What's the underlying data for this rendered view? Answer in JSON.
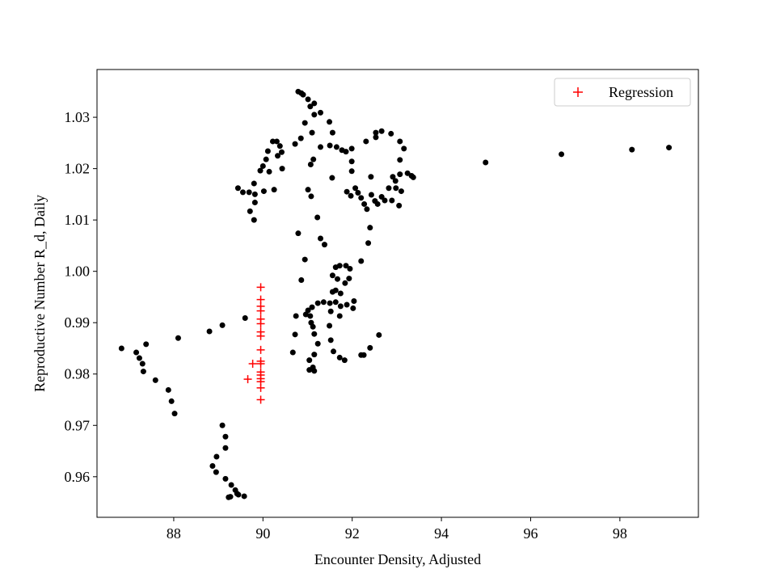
{
  "chart_data": {
    "type": "scatter",
    "x_label": "Encounter Density, Adjusted",
    "y_label": "Reproductive Number R_d, Daily",
    "xlim": [
      86.28,
      99.76
    ],
    "ylim": [
      0.9521,
      1.0393
    ],
    "xticks": [
      88,
      90,
      92,
      94,
      96,
      98
    ],
    "yticks": [
      0.96,
      0.97,
      0.98,
      0.99,
      {
        "value": 1,
        "label": "1.00"
      },
      1.01,
      1.02,
      1.03
    ],
    "legend": "upper right",
    "series": [
      {
        "color": "#000000",
        "marker": "dot",
        "x": [
          86.83,
          87.16,
          87.23,
          87.3,
          87.32,
          87.38,
          87.59,
          87.88,
          87.95,
          88.02,
          88.1,
          88.8,
          89.09,
          89.6,
          89.09,
          89.16,
          89.16,
          88.96,
          88.87,
          88.95,
          89.16,
          89.29,
          89.38,
          89.45,
          89.58,
          89.27,
          89.42,
          89.23,
          89.44,
          89.55,
          89.69,
          89.8,
          89.82,
          89.71,
          89.8,
          89.82,
          90.02,
          89.94,
          90.0,
          90.07,
          90.11,
          90.14,
          90.22,
          90.31,
          90.38,
          90.42,
          90.33,
          90.25,
          90.43,
          90.72,
          90.85,
          90.94,
          91.1,
          91.15,
          91.15,
          91.01,
          90.9,
          90.79,
          90.86,
          91.06,
          91.29,
          91.13,
          91.07,
          91.29,
          91.49,
          91.56,
          91.5,
          91.65,
          91.77,
          91.86,
          91.99,
          91.99,
          91.55,
          91.99,
          91.01,
          91.08,
          91.22,
          90.79,
          91.29,
          91.38,
          90.94,
          90.86,
          91.88,
          91.97,
          92.07,
          92.13,
          92.2,
          92.27,
          92.33,
          92.42,
          92.43,
          92.51,
          92.57,
          92.66,
          92.73,
          92.82,
          92.89,
          92.98,
          93.05,
          93.1,
          92.97,
          92.91,
          93.07,
          93.24,
          93.33,
          93.37,
          93.07,
          93.16,
          93.07,
          92.87,
          92.66,
          92.53,
          92.53,
          92.31,
          92.4,
          92.36,
          92.2,
          92.6,
          92.4,
          92.26,
          92.04,
          92.02,
          91.63,
          91.72,
          91.86,
          91.95,
          91.93,
          91.84,
          91.67,
          91.56,
          91.63,
          91.74,
          91.74,
          91.72,
          91.88,
          91.63,
          91.5,
          91.36,
          91.23,
          91.1,
          91.01,
          90.96,
          91.06,
          91.08,
          91.12,
          91.15,
          91.23,
          91.15,
          91.04,
          91.04,
          91.15,
          91.12,
          90.72,
          90.67,
          90.74,
          91.52,
          91.49,
          91.52,
          91.58,
          91.72,
          91.83,
          92.2,
          91.56,
          94.99,
          96.69,
          98.27,
          99.1
        ],
        "values": [
          0.985,
          0.9842,
          0.9831,
          0.982,
          0.9805,
          0.9858,
          0.9788,
          0.9769,
          0.9747,
          0.9723,
          0.987,
          0.9883,
          0.9895,
          0.9909,
          0.97,
          0.9678,
          0.9656,
          0.9639,
          0.9621,
          0.9609,
          0.9596,
          0.9584,
          0.9574,
          0.9565,
          0.9562,
          0.9561,
          0.9567,
          0.956,
          1.0162,
          1.0154,
          1.0154,
          1.0171,
          1.015,
          1.0117,
          1.01,
          1.0134,
          1.0156,
          1.0196,
          1.0205,
          1.0218,
          1.0234,
          1.0194,
          1.0253,
          1.0253,
          1.0244,
          1.0232,
          1.0225,
          1.0159,
          1.02,
          1.0248,
          1.0259,
          1.0289,
          1.027,
          1.0305,
          1.0327,
          1.0335,
          1.0344,
          1.035,
          1.0347,
          1.0321,
          1.0309,
          1.0218,
          1.0208,
          1.0242,
          1.0291,
          1.027,
          1.0245,
          1.0242,
          1.0236,
          1.0233,
          1.0239,
          1.0214,
          1.0182,
          1.0195,
          1.0159,
          1.0146,
          1.0105,
          1.0074,
          1.0064,
          1.0052,
          1.0023,
          0.9983,
          1.0155,
          1.0147,
          1.0162,
          1.0153,
          1.0143,
          1.0131,
          1.0121,
          1.0184,
          1.0149,
          1.0137,
          1.0131,
          1.0145,
          1.0138,
          1.0162,
          1.0138,
          1.0162,
          1.0128,
          1.0156,
          1.0176,
          1.0184,
          1.0189,
          1.0191,
          1.0186,
          1.0183,
          1.0217,
          1.0239,
          1.0253,
          1.0268,
          1.0273,
          1.027,
          1.0261,
          1.0253,
          1.0085,
          1.0055,
          1.002,
          0.9876,
          0.9851,
          0.9837,
          0.9942,
          0.9928,
          1.0008,
          1.0011,
          1.0011,
          1.0005,
          0.9986,
          0.9977,
          0.9985,
          0.9992,
          0.9963,
          0.9957,
          0.9932,
          0.9913,
          0.9935,
          0.994,
          0.9938,
          0.994,
          0.9938,
          0.993,
          0.9924,
          0.9916,
          0.9913,
          0.99,
          0.9892,
          0.9878,
          0.9859,
          0.9838,
          0.9827,
          0.9808,
          0.9806,
          0.9813,
          0.9877,
          0.9842,
          0.9913,
          0.9922,
          0.9894,
          0.9866,
          0.9844,
          0.9832,
          0.9827,
          0.9837,
          0.996,
          1.0212,
          1.0228,
          1.0237,
          1.0241
        ]
      },
      {
        "name": "Regression",
        "color": "#ff0000",
        "marker": "plus",
        "x": [
          89.66,
          89.77,
          89.95,
          89.95,
          89.95,
          89.95,
          89.95,
          89.95,
          89.95,
          89.95,
          89.95,
          89.95,
          89.95,
          89.95,
          89.95,
          89.95,
          89.95,
          89.95,
          89.95
        ],
        "values": [
          0.979,
          0.982,
          0.9969,
          0.9945,
          0.9932,
          0.9923,
          0.9907,
          0.9898,
          0.9882,
          0.9874,
          0.9847,
          0.9825,
          0.982,
          0.9804,
          0.9798,
          0.9791,
          0.9785,
          0.9773,
          0.975
        ]
      }
    ]
  }
}
